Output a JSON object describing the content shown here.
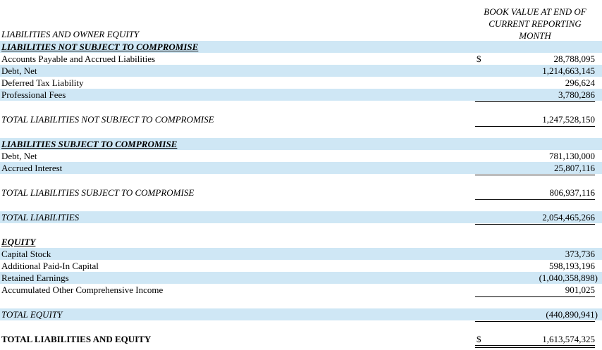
{
  "header": {
    "column_title_lines": [
      "BOOK VALUE AT END OF",
      "CURRENT REPORTING",
      "MONTH"
    ],
    "section_title": "LIABILITIES AND OWNER EQUITY"
  },
  "rows": {
    "r1": {
      "label": "LIABILITIES NOT SUBJECT TO COMPROMISE"
    },
    "r2": {
      "label": "Accounts Payable and Accrued Liabilities",
      "currency": "$",
      "value": "28,788,095"
    },
    "r3": {
      "label": "Debt, Net",
      "value": "1,214,663,145"
    },
    "r4": {
      "label": "Deferred Tax Liability",
      "value": "296,624"
    },
    "r5": {
      "label": "Professional Fees",
      "value": "3,780,286"
    },
    "r6": {
      "label": "TOTAL LIABILITIES NOT SUBJECT TO COMPROMISE",
      "value": "1,247,528,150"
    },
    "r7": {
      "label": "LIABILITIES SUBJECT TO COMPROMISE"
    },
    "r8": {
      "label": "Debt, Net",
      "value": "781,130,000"
    },
    "r9": {
      "label": "Accrued Interest",
      "value": "25,807,116"
    },
    "r10": {
      "label": "TOTAL LIABILITIES SUBJECT TO COMPROMISE",
      "value": "806,937,116"
    },
    "r11": {
      "label": "TOTAL LIABILITIES",
      "value": "2,054,465,266"
    },
    "r12": {
      "label": "EQUITY"
    },
    "r13": {
      "label": "Capital Stock",
      "value": "373,736"
    },
    "r14": {
      "label": "Additional Paid-In Capital",
      "value": "598,193,196"
    },
    "r15": {
      "label": "Retained Earnings",
      "value": "(1,040,358,898)"
    },
    "r16": {
      "label": "Accumulated Other Comprehensive Income",
      "value": "901,025"
    },
    "r17": {
      "label": "TOTAL EQUITY",
      "value": "(440,890,941)"
    },
    "r18": {
      "label": "TOTAL LIABILITIES AND EQUITY",
      "currency": "$",
      "value": "1,613,574,325"
    }
  },
  "colors": {
    "row_shade": "#cfe7f5"
  }
}
